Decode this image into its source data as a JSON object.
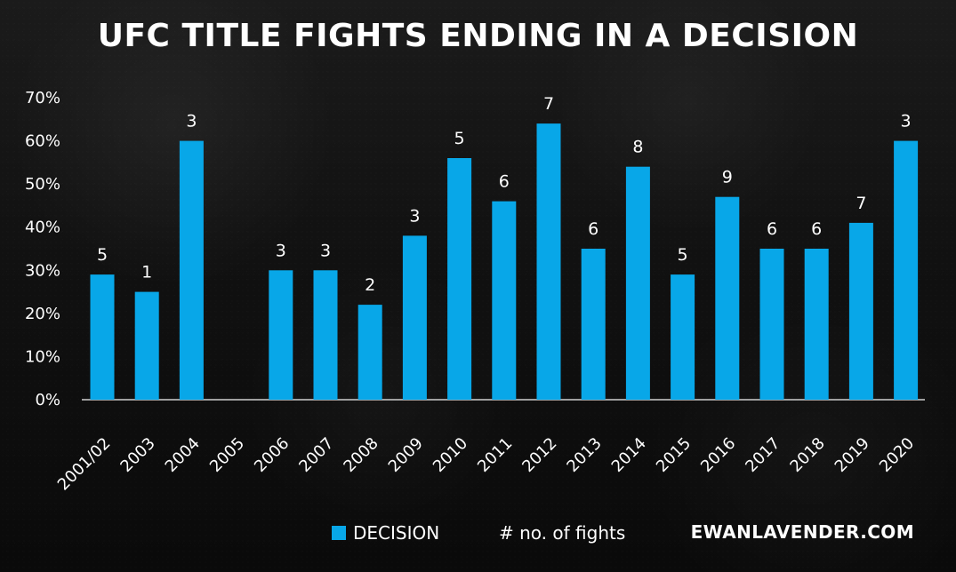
{
  "chart_data": {
    "type": "bar",
    "title": "UFC TITLE FIGHTS ENDING IN A DECISION",
    "categories": [
      "2001/02",
      "2003",
      "2004",
      "2005",
      "2006",
      "2007",
      "2008",
      "2009",
      "2010",
      "2011",
      "2012",
      "2013",
      "2014",
      "2015",
      "2016",
      "2017",
      "2018",
      "2019",
      "2020"
    ],
    "series": [
      {
        "name": "DECISION",
        "values": [
          29,
          25,
          60,
          0,
          30,
          30,
          22,
          38,
          56,
          46,
          64,
          35,
          54,
          29,
          47,
          35,
          35,
          41,
          60
        ]
      }
    ],
    "data_labels": [
      "5",
      "1",
      "3",
      "",
      "3",
      "3",
      "2",
      "3",
      "5",
      "6",
      "7",
      "6",
      "8",
      "5",
      "9",
      "6",
      "6",
      "7",
      "3"
    ],
    "ylim": [
      0,
      70
    ],
    "yticks": [
      "0%",
      "10%",
      "20%",
      "30%",
      "40%",
      "50%",
      "60%",
      "70%"
    ],
    "grid": false,
    "legend": {
      "position": "bottom",
      "entries": [
        "DECISION",
        "# no. of fights"
      ]
    },
    "colors": {
      "bar": "#08a7e8",
      "text": "#ffffff",
      "axis": "#cfcfcf"
    }
  },
  "footer": {
    "brand": "EWANLAVENDER.COM"
  }
}
